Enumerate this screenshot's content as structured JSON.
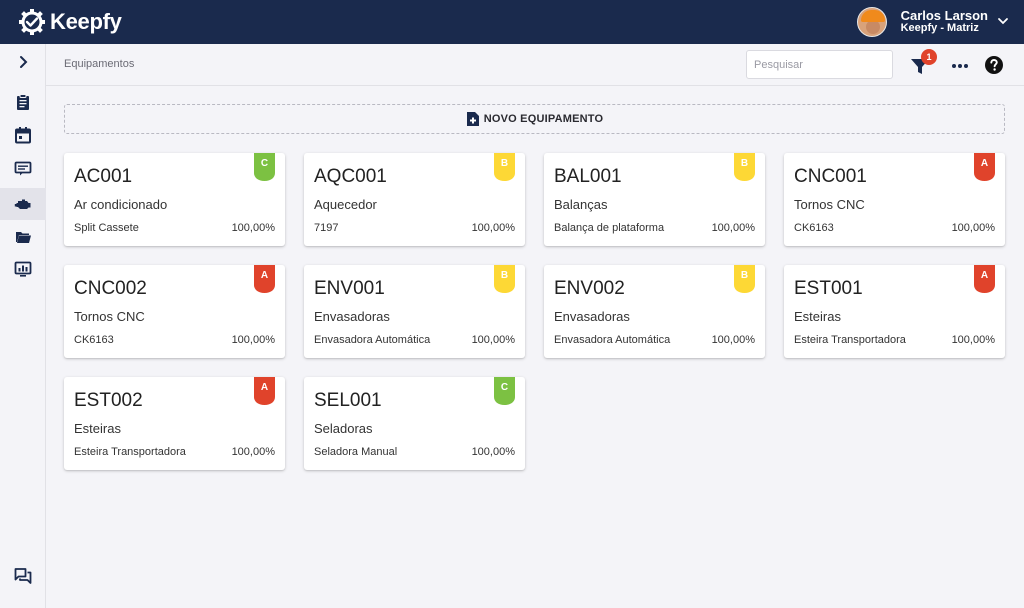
{
  "app": {
    "brand": "Keepfy"
  },
  "user": {
    "name": "Carlos Larson",
    "org": "Keepfy - Matriz"
  },
  "sidebar": {
    "items": [
      {
        "name": "expand",
        "icon": "chevron-right-icon"
      },
      {
        "name": "checklists",
        "icon": "clipboard-icon"
      },
      {
        "name": "calendar",
        "icon": "calendar-icon"
      },
      {
        "name": "tickets",
        "icon": "ticket-icon"
      },
      {
        "name": "equipment",
        "icon": "engine-icon",
        "active": true
      },
      {
        "name": "folders",
        "icon": "folder-icon"
      },
      {
        "name": "dashboard",
        "icon": "monitor-chart-icon"
      }
    ],
    "chat_icon": "chat-icon"
  },
  "header": {
    "breadcrumb": "Equipamentos",
    "search_placeholder": "Pesquisar",
    "filter_badge": "1"
  },
  "main": {
    "new_button_label": "NOVO EQUIPAMENTO"
  },
  "colors": {
    "topbar": "#1a2a4d",
    "crit_A": "#e0432b",
    "crit_B": "#fdd835",
    "crit_C": "#7cc142"
  },
  "equipment": [
    {
      "code": "AC001",
      "name": "Ar condicionado",
      "model": "Split Cassete",
      "percent": "100,00%",
      "criticality": "C"
    },
    {
      "code": "AQC001",
      "name": "Aquecedor",
      "model": "7197",
      "percent": "100,00%",
      "criticality": "B"
    },
    {
      "code": "BAL001",
      "name": "Balanças",
      "model": "Balança de plataforma",
      "percent": "100,00%",
      "criticality": "B"
    },
    {
      "code": "CNC001",
      "name": "Tornos CNC",
      "model": "CK6163",
      "percent": "100,00%",
      "criticality": "A"
    },
    {
      "code": "CNC002",
      "name": "Tornos CNC",
      "model": "CK6163",
      "percent": "100,00%",
      "criticality": "A"
    },
    {
      "code": "ENV001",
      "name": "Envasadoras",
      "model": "Envasadora Automática",
      "percent": "100,00%",
      "criticality": "B"
    },
    {
      "code": "ENV002",
      "name": "Envasadoras",
      "model": "Envasadora Automática",
      "percent": "100,00%",
      "criticality": "B"
    },
    {
      "code": "EST001",
      "name": "Esteiras",
      "model": "Esteira Transportadora",
      "percent": "100,00%",
      "criticality": "A"
    },
    {
      "code": "EST002",
      "name": "Esteiras",
      "model": "Esteira Transportadora",
      "percent": "100,00%",
      "criticality": "A"
    },
    {
      "code": "SEL001",
      "name": "Seladoras",
      "model": "Seladora Manual",
      "percent": "100,00%",
      "criticality": "C"
    }
  ]
}
